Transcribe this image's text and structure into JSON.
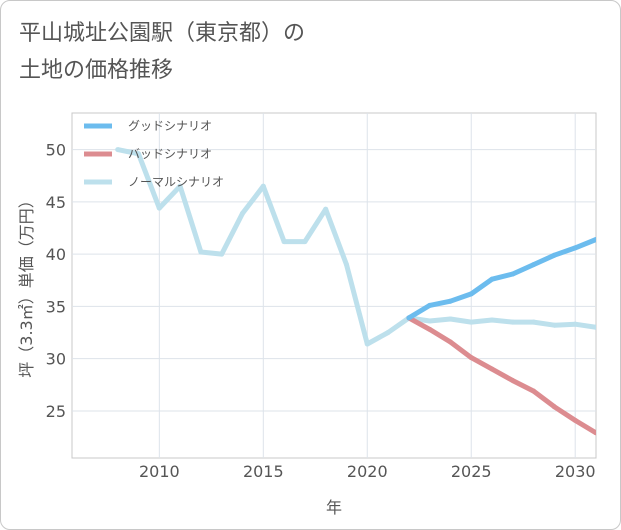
{
  "title": {
    "line1": "平山城址公園駅（東京都）の",
    "line2": "土地の価格推移"
  },
  "chart_data": {
    "type": "line",
    "title": "平山城址公園駅（東京都）の土地の価格推移",
    "xlabel": "年",
    "ylabel": "坪（3.3㎡）単価（万円）",
    "xlim": [
      2005.8,
      2031
    ],
    "ylim": [
      20.5,
      53.5
    ],
    "xticks": [
      2010,
      2015,
      2020,
      2025,
      2030
    ],
    "yticks": [
      25,
      30,
      35,
      40,
      45,
      50
    ],
    "grid": true,
    "legend_position": "top-left",
    "series": [
      {
        "name": "グッドシナリオ",
        "color": "#6cbcee",
        "x": [
          2022,
          2023,
          2024,
          2025,
          2026,
          2027,
          2028,
          2029,
          2030,
          2031
        ],
        "values": [
          33.9,
          35.1,
          35.5,
          36.2,
          37.6,
          38.1,
          39.0,
          39.9,
          40.6,
          41.4
        ]
      },
      {
        "name": "バッドシナリオ",
        "color": "#dc8c90",
        "x": [
          2022,
          2023,
          2024,
          2025,
          2026,
          2027,
          2028,
          2029,
          2030,
          2031
        ],
        "values": [
          33.9,
          32.8,
          31.6,
          30.1,
          29.0,
          27.9,
          26.9,
          25.4,
          24.1,
          22.9
        ]
      },
      {
        "name": "ノーマルシナリオ",
        "color": "#bde0ec",
        "x": [
          2008,
          2009,
          2010,
          2011,
          2012,
          2013,
          2014,
          2015,
          2016,
          2017,
          2018,
          2019,
          2020,
          2021,
          2022,
          2023,
          2024,
          2025,
          2026,
          2027,
          2028,
          2029,
          2030,
          2031
        ],
        "values": [
          50.0,
          49.6,
          44.4,
          46.5,
          40.2,
          40.0,
          43.9,
          46.5,
          41.2,
          41.2,
          44.3,
          39.0,
          31.4,
          32.5,
          33.9,
          33.6,
          33.8,
          33.5,
          33.7,
          33.5,
          33.5,
          33.2,
          33.3,
          33.0
        ]
      }
    ]
  }
}
